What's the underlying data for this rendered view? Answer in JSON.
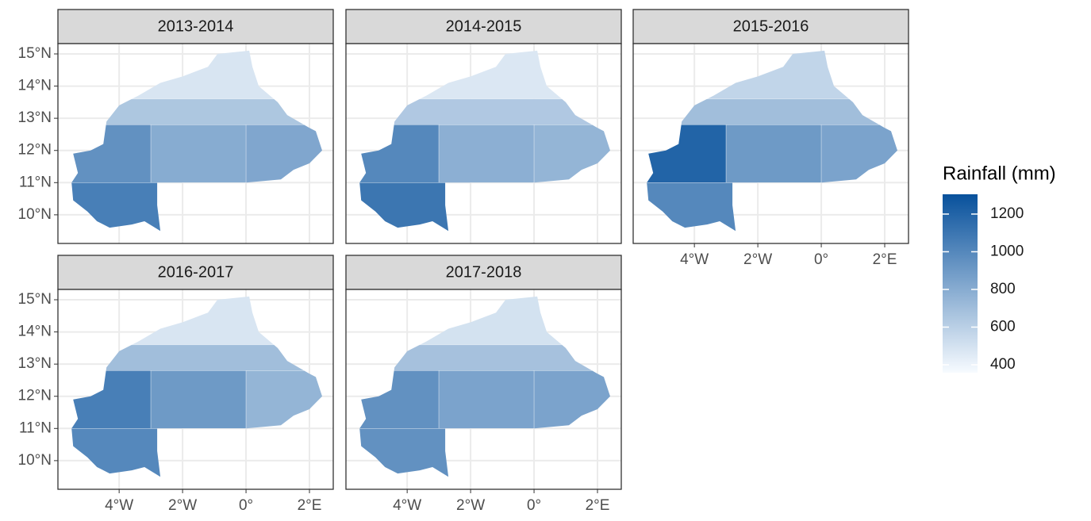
{
  "chart_data": {
    "type": "choropleth",
    "panels": [
      {
        "title": "2013-2014",
        "values": [
          480,
          650,
          950,
          800,
          830,
          1050
        ]
      },
      {
        "title": "2014-2015",
        "values": [
          470,
          640,
          1000,
          780,
          750,
          1100
        ]
      },
      {
        "title": "2015-2016",
        "values": [
          570,
          700,
          1200,
          900,
          850,
          1000
        ]
      },
      {
        "title": "2016-2017",
        "values": [
          480,
          700,
          1050,
          900,
          750,
          1000
        ]
      },
      {
        "title": "2017-2018",
        "values": [
          500,
          680,
          950,
          850,
          850,
          950
        ]
      }
    ],
    "xlim": [
      -5.93,
      2.75
    ],
    "ylim": [
      9.11,
      15.32
    ],
    "xticks": [
      {
        "value": -4,
        "label": "4°W"
      },
      {
        "value": -2,
        "label": "2°W"
      },
      {
        "value": 0,
        "label": "0°"
      },
      {
        "value": 2,
        "label": "2°E"
      }
    ],
    "yticks": [
      {
        "value": 10,
        "label": "10°N"
      },
      {
        "value": 11,
        "label": "11°N"
      },
      {
        "value": 12,
        "label": "12°N"
      },
      {
        "value": 13,
        "label": "13°N"
      },
      {
        "value": 14,
        "label": "14°N"
      },
      {
        "value": 15,
        "label": "15°N"
      }
    ],
    "grid": true,
    "legend": {
      "title": "Rainfall (mm)",
      "lim": [
        358,
        1305
      ],
      "ticks": [
        400,
        600,
        800,
        1000,
        1200
      ],
      "colors": [
        "#f7fbff",
        "#08519c"
      ]
    }
  }
}
